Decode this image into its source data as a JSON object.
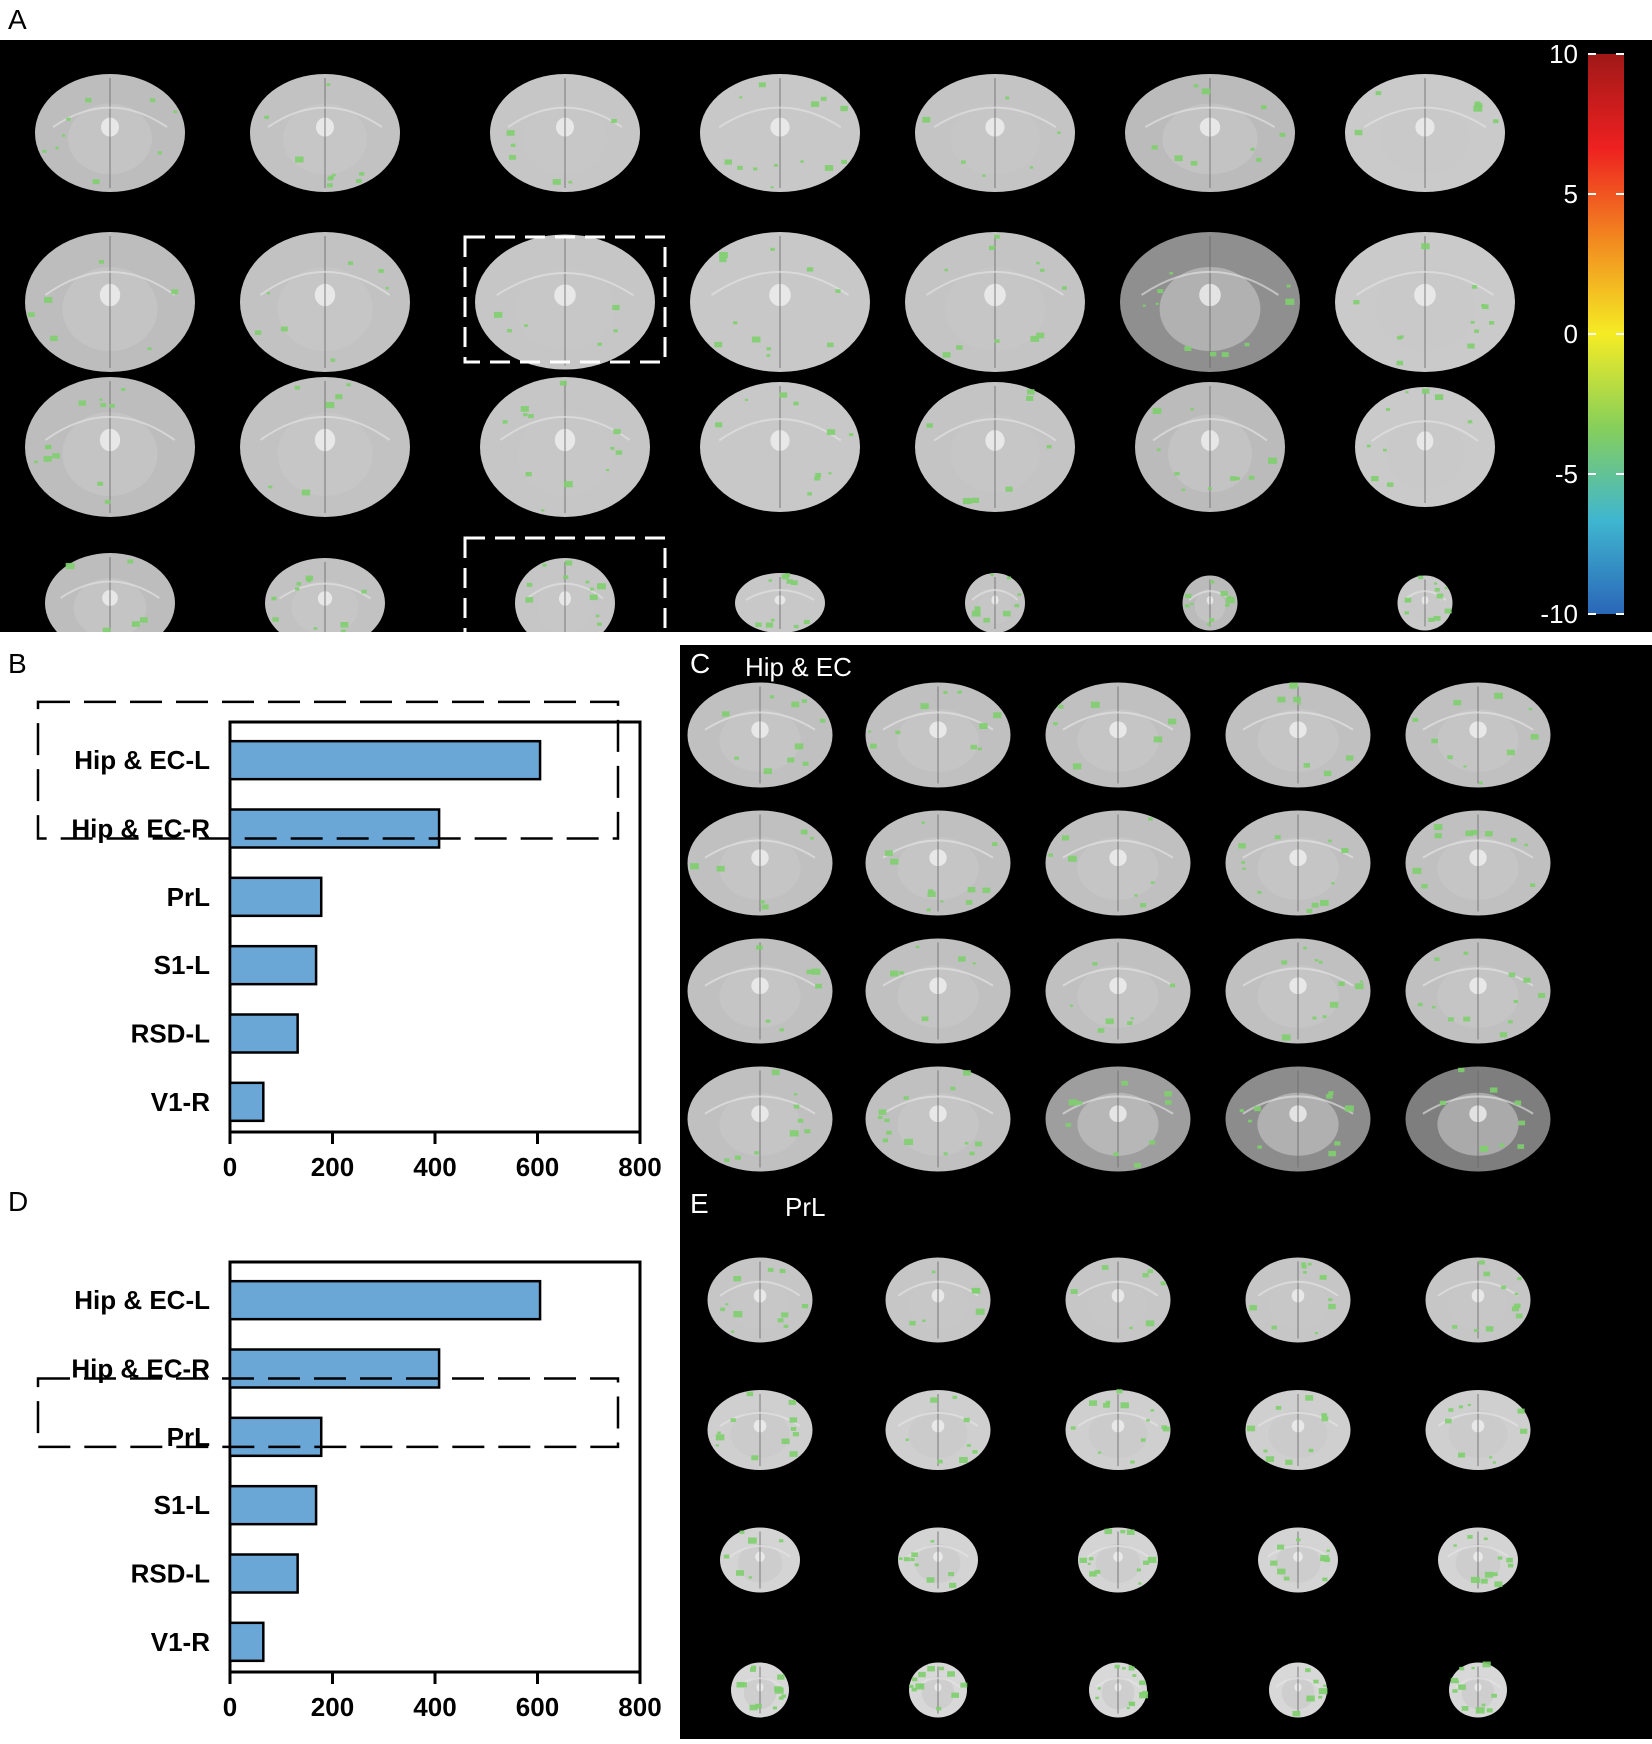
{
  "panels": {
    "a": {
      "letter": "A"
    },
    "b": {
      "letter": "B"
    },
    "c": {
      "letter": "C",
      "title": "Hip & EC"
    },
    "d": {
      "letter": "D"
    },
    "e": {
      "letter": "E",
      "title": "PrL"
    }
  },
  "colorbar": {
    "ticks": [
      "10",
      "5",
      "0",
      "-5",
      "-10"
    ],
    "colors": [
      "#a01818",
      "#ee2020",
      "#f28a20",
      "#f5ec24",
      "#86cf5a",
      "#3fb6d0",
      "#2a66b8"
    ]
  },
  "brain_grid_a": {
    "rows": 4,
    "cols": 7,
    "highlighted": [
      "1-2",
      "3-2"
    ]
  },
  "brain_grid_c": {
    "rows": 4,
    "cols": 5
  },
  "brain_grid_e": {
    "rows": 4,
    "cols": 5
  },
  "activation_color": "#7ecf6e",
  "bar_fill": "#6aa6d6",
  "chart_data": [
    {
      "type": "bar",
      "orientation": "horizontal",
      "panel": "B",
      "categories": [
        "Hip & EC-L",
        "Hip & EC-R",
        "PrL",
        "S1-L",
        "RSD-L",
        "V1-R"
      ],
      "values": [
        605,
        408,
        178,
        168,
        132,
        65
      ],
      "xlim": [
        0,
        800
      ],
      "xticks": [
        "0",
        "200",
        "400",
        "600",
        "800"
      ],
      "highlighted": [
        "Hip & EC-L",
        "Hip & EC-R"
      ]
    },
    {
      "type": "bar",
      "orientation": "horizontal",
      "panel": "D",
      "categories": [
        "Hip & EC-L",
        "Hip & EC-R",
        "PrL",
        "S1-L",
        "RSD-L",
        "V1-R"
      ],
      "values": [
        605,
        408,
        178,
        168,
        132,
        65
      ],
      "xlim": [
        0,
        800
      ],
      "xticks": [
        "0",
        "200",
        "400",
        "600",
        "800"
      ],
      "highlighted": [
        "PrL"
      ]
    }
  ]
}
